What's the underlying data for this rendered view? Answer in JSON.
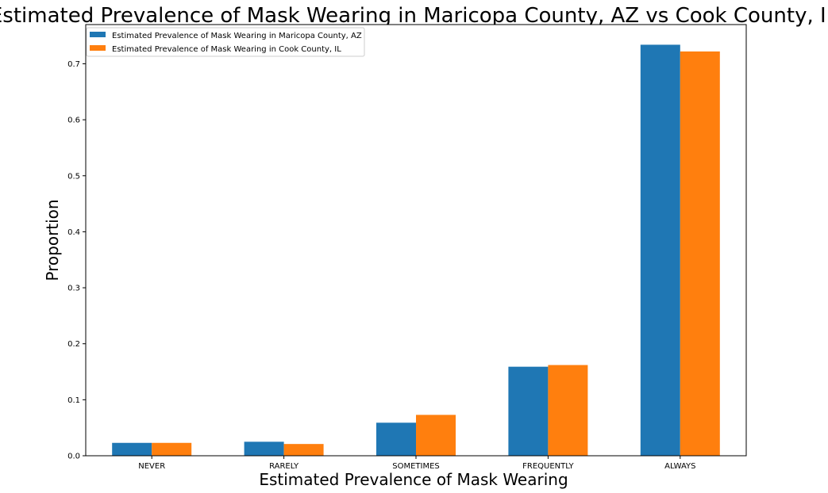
{
  "chart_data": {
    "type": "bar",
    "title": "Estimated Prevalence of Mask Wearing in Maricopa County, AZ vs Cook County, IL",
    "xlabel": "Estimated Prevalence of Mask Wearing",
    "ylabel": "Proportion",
    "categories": [
      "NEVER",
      "RARELY",
      "SOMETIMES",
      "FREQUENTLY",
      "ALWAYS"
    ],
    "series": [
      {
        "name": "Estimated Prevalence of Mask Wearing in Maricopa County, AZ",
        "color": "#1f77b4",
        "values": [
          0.023,
          0.025,
          0.059,
          0.159,
          0.734
        ]
      },
      {
        "name": "Estimated Prevalence of Mask Wearing in Cook County, IL",
        "color": "#ff7f0e",
        "values": [
          0.023,
          0.021,
          0.073,
          0.162,
          0.722
        ]
      }
    ],
    "ylim": [
      0,
      0.77
    ],
    "yticks": [
      "0.0",
      "0.1",
      "0.2",
      "0.3",
      "0.4",
      "0.5",
      "0.6",
      "0.7"
    ],
    "grid": false,
    "legend_position": "top-left"
  }
}
